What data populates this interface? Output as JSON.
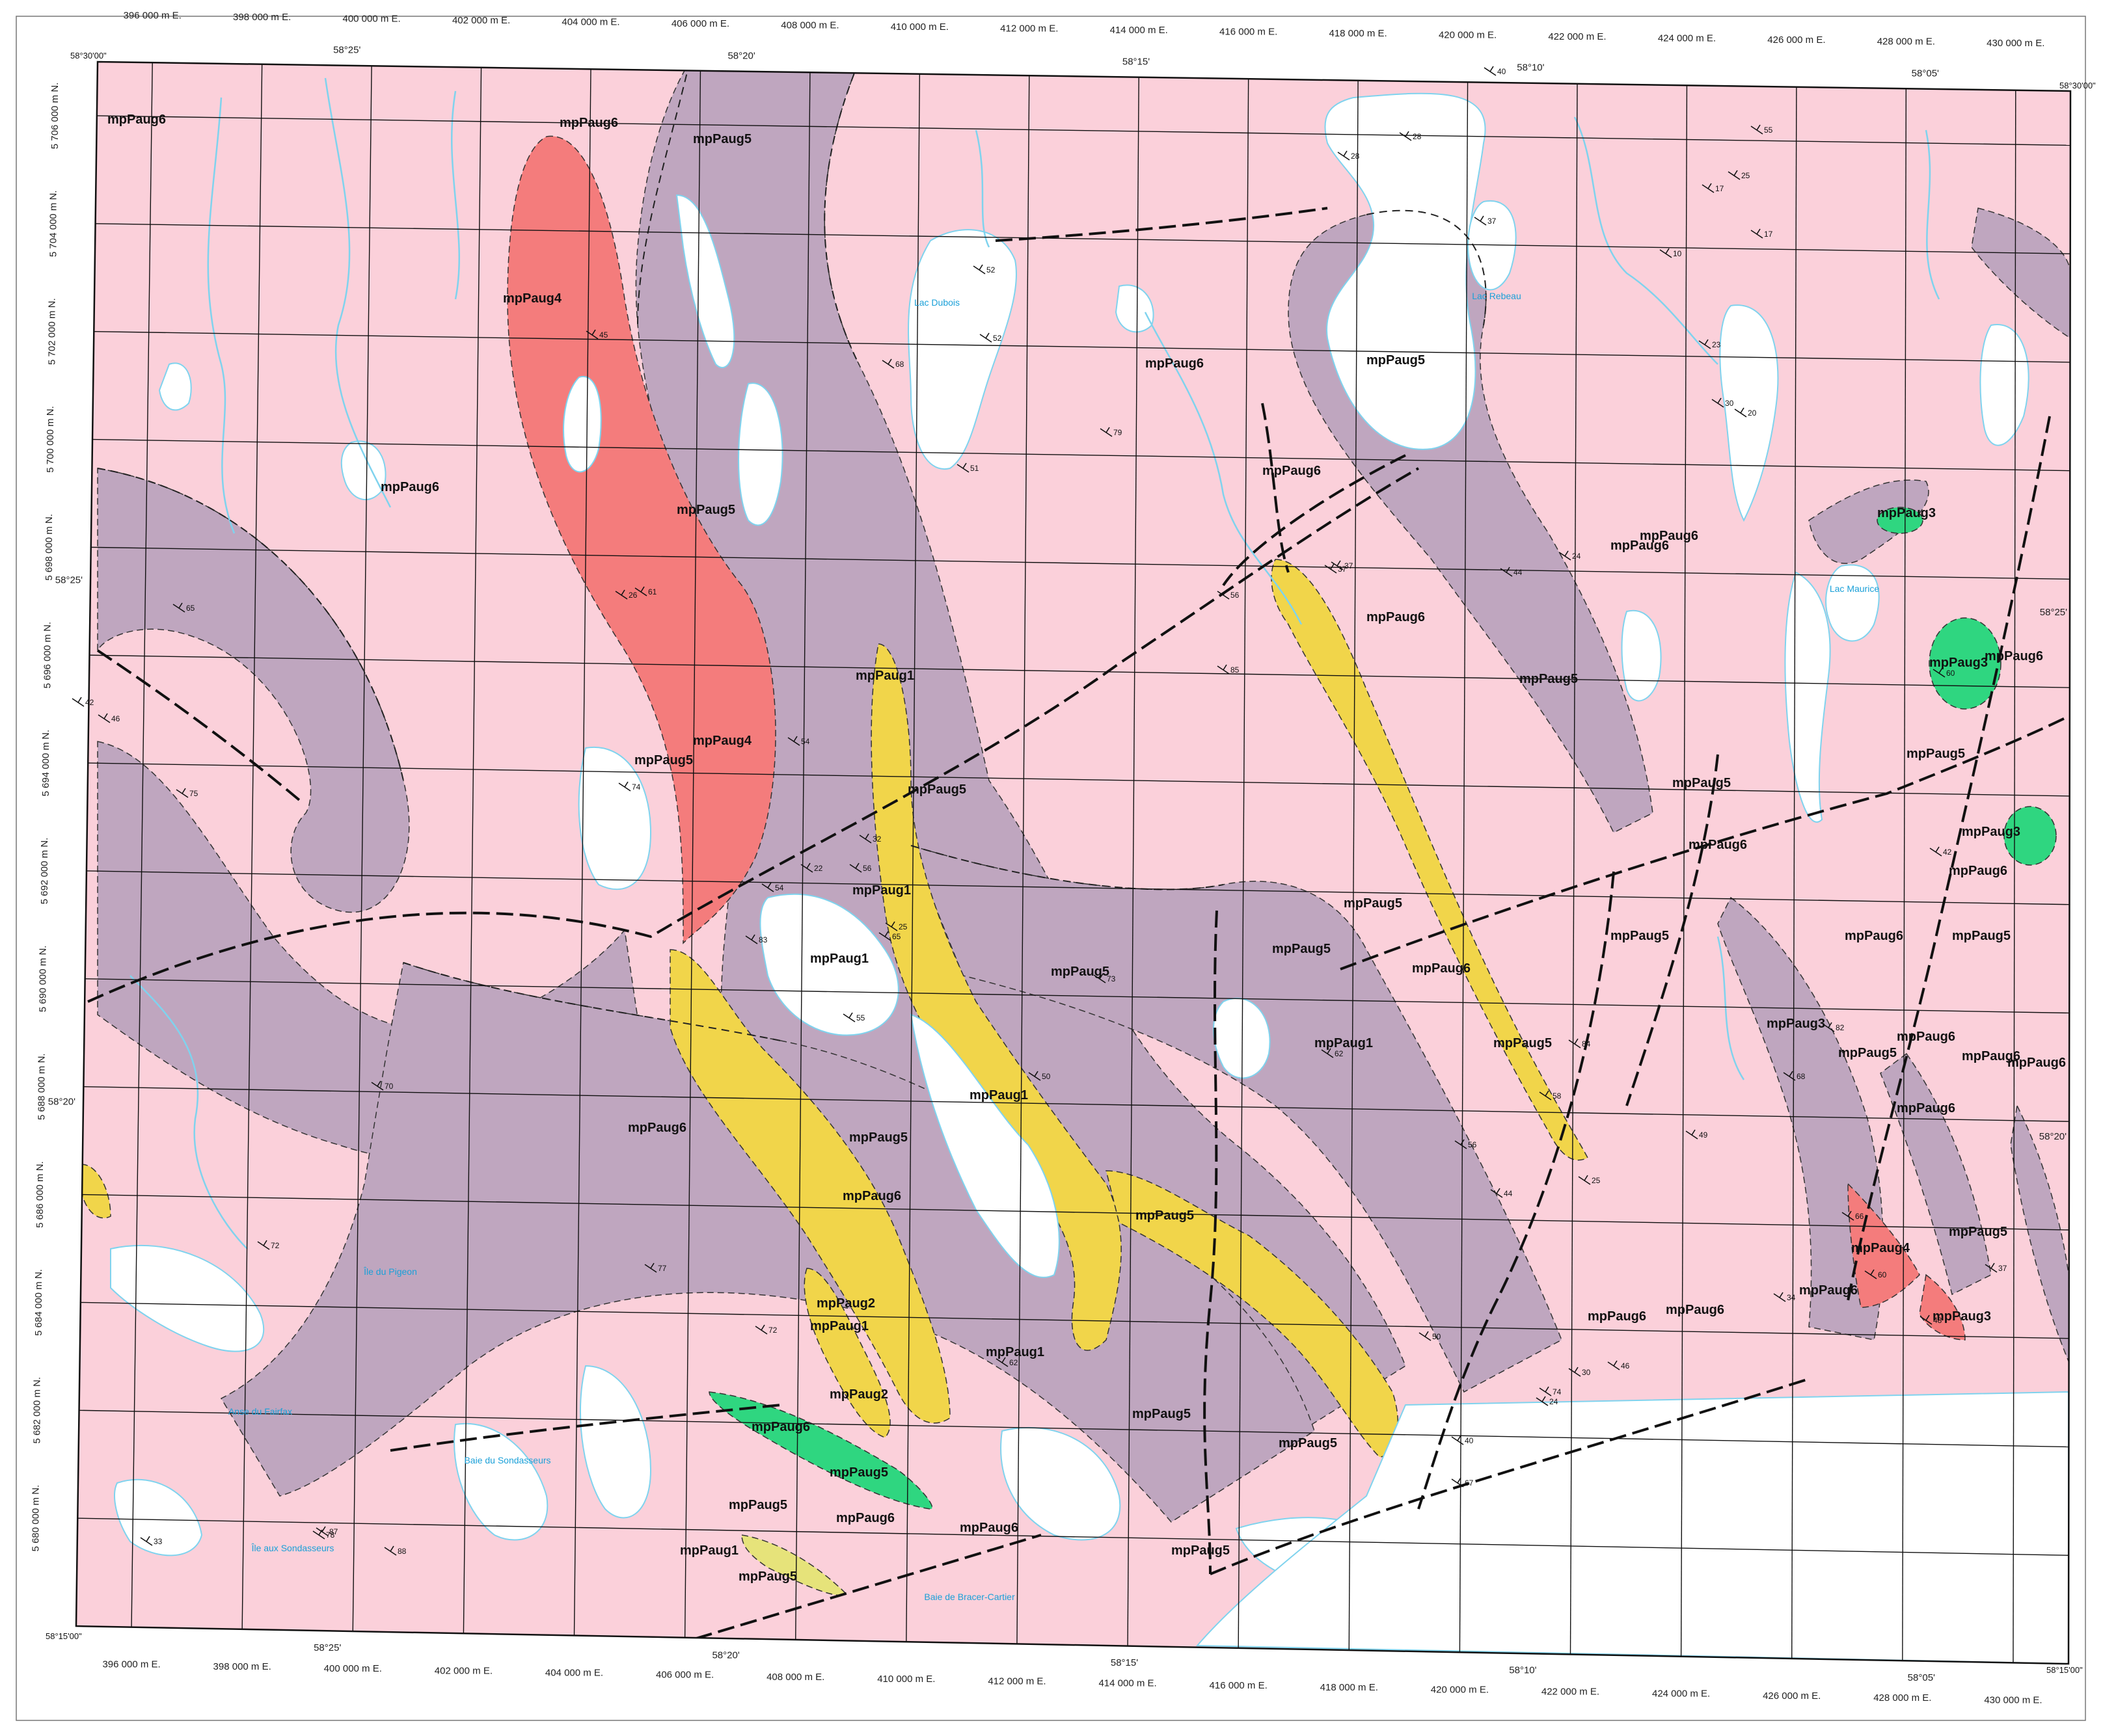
{
  "colors": {
    "mpPaug6": "#fbd0da",
    "mpPaug5": "#bfa6bf",
    "mpPaug4": "#f47c7c",
    "mpPaug3": "#2fd680",
    "mpPaug2": "#e6e37a",
    "mpPaug1": "#f1d54a",
    "water": "#ffffff",
    "stream": "#7fd3ee",
    "grid": "#111111",
    "fault": "#111111"
  },
  "map": {
    "corners": {
      "nw_lat": "58°30'00\"",
      "ne_lat": "58°30'00\"",
      "sw_lat": "58°15'00\"",
      "se_lat": "58°15'00\""
    },
    "eastings_top": [
      "396 000 m E.",
      "398 000 m E.",
      "400 000 m E.",
      "402 000 m E.",
      "404 000 m E.",
      "406 000 m E.",
      "408 000 m E.",
      "410 000 m E.",
      "412 000 m E.",
      "414 000 m E.",
      "416 000 m E.",
      "418 000 m E.",
      "420 000 m E.",
      "422 000 m E.",
      "424 000 m E.",
      "426 000 m E.",
      "428 000 m E.",
      "430 000 m E."
    ],
    "eastings_bottom": [
      "396 000 m E.",
      "398 000 m E.",
      "400 000 m E.",
      "402 000 m E.",
      "404 000 m E.",
      "406 000 m E.",
      "408 000 m E.",
      "410 000 m E.",
      "412 000 m E.",
      "414 000 m E.",
      "416 000 m E.",
      "418 000 m E.",
      "420 000 m E.",
      "422 000 m E.",
      "424 000 m E.",
      "426 000 m E.",
      "428 000 m E.",
      "430 000 m E."
    ],
    "northings_left": [
      "5 706 000 m N.",
      "5 704 000 m N.",
      "5 702 000 m N.",
      "5 700 000 m N.",
      "5 698 000 m N.",
      "5 696 000 m N.",
      "5 694 000 m N.",
      "5 692 000 m N.",
      "5 690 000 m N.",
      "5 688 000 m N.",
      "5 686 000 m N.",
      "5 684 000 m N.",
      "5 682 000 m N.",
      "5 680 000 m N."
    ],
    "longitudes_top": [
      "58°25'",
      "58°20'",
      "58°15'",
      "58°10'",
      "58°05'"
    ],
    "longitudes_bottom": [
      "58°25'",
      "58°20'",
      "58°15'",
      "58°10'",
      "58°05'"
    ],
    "latitudes_left": [
      "58°25'",
      "58°20'"
    ],
    "latitudes_right": [
      "58°25'",
      "58°20'"
    ],
    "unit_labels": [
      {
        "text": "mpPaug6",
        "unit": "mpPaug6"
      },
      {
        "text": "mpPaug6",
        "unit": "mpPaug6"
      },
      {
        "text": "mpPaug5",
        "unit": "mpPaug5"
      },
      {
        "text": "mpPaug4",
        "unit": "mpPaug4"
      },
      {
        "text": "mpPaug6",
        "unit": "mpPaug6"
      },
      {
        "text": "mpPaug5",
        "unit": "mpPaug5"
      },
      {
        "text": "mpPaug6",
        "unit": "mpPaug6"
      },
      {
        "text": "mpPaug6",
        "unit": "mpPaug6"
      },
      {
        "text": "mpPaug5",
        "unit": "mpPaug5"
      },
      {
        "text": "mpPaug6",
        "unit": "mpPaug6"
      },
      {
        "text": "mpPaug4",
        "unit": "mpPaug4"
      },
      {
        "text": "mpPaug1",
        "unit": "mpPaug1"
      },
      {
        "text": "mpPaug5",
        "unit": "mpPaug5"
      },
      {
        "text": "mpPaug6",
        "unit": "mpPaug6"
      },
      {
        "text": "mpPaug5",
        "unit": "mpPaug5"
      },
      {
        "text": "mpPaug6",
        "unit": "mpPaug6"
      },
      {
        "text": "mpPaug1",
        "unit": "mpPaug1"
      },
      {
        "text": "mpPaug5",
        "unit": "mpPaug5"
      },
      {
        "text": "mpPaug6",
        "unit": "mpPaug6"
      },
      {
        "text": "mpPaug5",
        "unit": "mpPaug5"
      },
      {
        "text": "mpPaug1",
        "unit": "mpPaug1"
      },
      {
        "text": "mpPaug5",
        "unit": "mpPaug5"
      },
      {
        "text": "mpPaug1",
        "unit": "mpPaug1"
      },
      {
        "text": "mpPaug5",
        "unit": "mpPaug5"
      },
      {
        "text": "mpPaug6",
        "unit": "mpPaug6"
      },
      {
        "text": "mpPaug1",
        "unit": "mpPaug1"
      },
      {
        "text": "mpPaug6",
        "unit": "mpPaug6"
      },
      {
        "text": "mpPaug5",
        "unit": "mpPaug5"
      },
      {
        "text": "mpPaug6",
        "unit": "mpPaug6"
      },
      {
        "text": "mpPaug5",
        "unit": "mpPaug5"
      },
      {
        "text": "mpPaug5",
        "unit": "mpPaug5"
      },
      {
        "text": "mpPaug6",
        "unit": "mpPaug6"
      },
      {
        "text": "mpPaug1",
        "unit": "mpPaug1"
      },
      {
        "text": "mpPaug1",
        "unit": "mpPaug1"
      },
      {
        "text": "mpPaug6",
        "unit": "mpPaug6"
      },
      {
        "text": "mpPaug5",
        "unit": "mpPaug5"
      },
      {
        "text": "mpPaug1",
        "unit": "mpPaug1"
      },
      {
        "text": "mpPaug5",
        "unit": "mpPaug5"
      },
      {
        "text": "mpPaug6",
        "unit": "mpPaug6"
      },
      {
        "text": "mpPaug6",
        "unit": "mpPaug6"
      },
      {
        "text": "mpPaug5",
        "unit": "mpPaug5"
      },
      {
        "text": "mpPaug5",
        "unit": "mpPaug5"
      },
      {
        "text": "mpPaug6",
        "unit": "mpPaug6"
      },
      {
        "text": "mpPaug5",
        "unit": "mpPaug5"
      },
      {
        "text": "mpPaug6",
        "unit": "mpPaug6"
      },
      {
        "text": "mpPaug3",
        "unit": "mpPaug3"
      },
      {
        "text": "mpPaug3",
        "unit": "mpPaug3"
      },
      {
        "text": "mpPaug5",
        "unit": "mpPaug5"
      },
      {
        "text": "mpPaug3",
        "unit": "mpPaug3"
      },
      {
        "text": "mpPaug6",
        "unit": "mpPaug6"
      },
      {
        "text": "mpPaug6",
        "unit": "mpPaug6"
      },
      {
        "text": "mpPaug6",
        "unit": "mpPaug6"
      },
      {
        "text": "mpPaug5",
        "unit": "mpPaug5"
      },
      {
        "text": "mpPaug4",
        "unit": "mpPaug4"
      },
      {
        "text": "mpPaug6",
        "unit": "mpPaug6"
      },
      {
        "text": "mpPaug3",
        "unit": "mpPaug3"
      },
      {
        "text": "mpPaug3",
        "unit": "mpPaug3"
      },
      {
        "text": "mpPaug5",
        "unit": "mpPaug5"
      },
      {
        "text": "mpPaug6",
        "unit": "mpPaug6"
      },
      {
        "text": "mpPaug6",
        "unit": "mpPaug6"
      },
      {
        "text": "mpPaug2",
        "unit": "mpPaug2"
      },
      {
        "text": "mpPaug2",
        "unit": "mpPaug2"
      },
      {
        "text": "mpPaug5",
        "unit": "mpPaug5"
      },
      {
        "text": "mpPaug5",
        "unit": "mpPaug5"
      },
      {
        "text": "mpPaug6",
        "unit": "mpPaug6"
      },
      {
        "text": "mpPaug5",
        "unit": "mpPaug5"
      },
      {
        "text": "mpPaug5",
        "unit": "mpPaug5"
      }
    ],
    "place_labels": [
      "Lac Dubois",
      "Lac Rebeau",
      "Lac Maurice",
      "Anse du Fairfax",
      "Baie du Sondasseurs",
      "Île du Pigeon",
      "Île aux Sondasseurs",
      "Baie de Bracer-Cartier"
    ],
    "dip_values": [
      74,
      45,
      51,
      52,
      68,
      79,
      65,
      37,
      54,
      61,
      26,
      56,
      65,
      62,
      50,
      52,
      54,
      22,
      32,
      25,
      83,
      55,
      37,
      60,
      56,
      42,
      28,
      40,
      28,
      37,
      24,
      25,
      20,
      30,
      55,
      17,
      17,
      23,
      10,
      25,
      44,
      46,
      75,
      42,
      70,
      73,
      72,
      77,
      56,
      84,
      50,
      74,
      58,
      44,
      49,
      34,
      66,
      82,
      60,
      48,
      37,
      68,
      40,
      24,
      30,
      67,
      85,
      62,
      46,
      78,
      72,
      87,
      88,
      33
    ]
  }
}
